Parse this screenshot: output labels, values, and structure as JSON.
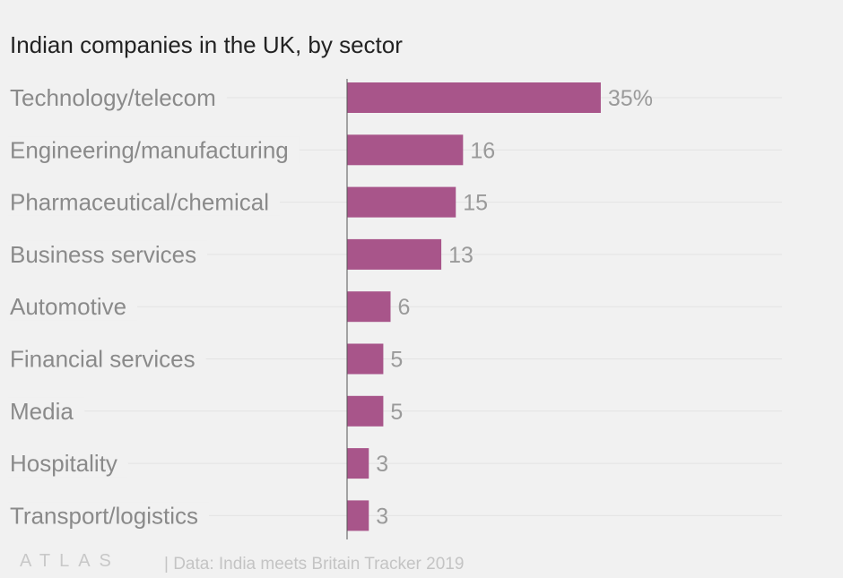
{
  "chart_data": {
    "type": "bar",
    "orientation": "horizontal",
    "title": "Indian companies in the UK, by sector",
    "categories": [
      "Technology/telecom",
      "Engineering/manufacturing",
      "Pharmaceutical/chemical",
      "Business services",
      "Automotive",
      "Financial services",
      "Media",
      "Hospitality",
      "Transport/logistics"
    ],
    "values": [
      35,
      16,
      15,
      13,
      6,
      5,
      5,
      3,
      3
    ],
    "value_labels": [
      "35%",
      "16",
      "15",
      "13",
      "6",
      "5",
      "5",
      "3",
      "3"
    ],
    "unit": "%",
    "xlim": [
      0,
      60
    ],
    "grid": true,
    "bar_color": "#a8558a"
  },
  "footer": {
    "logo": "ATLAS",
    "source": "| Data: India meets Britain Tracker 2019"
  },
  "colors": {
    "background": "#f1f1f1",
    "gridline": "#e3e3e3",
    "axis": "#555555"
  }
}
